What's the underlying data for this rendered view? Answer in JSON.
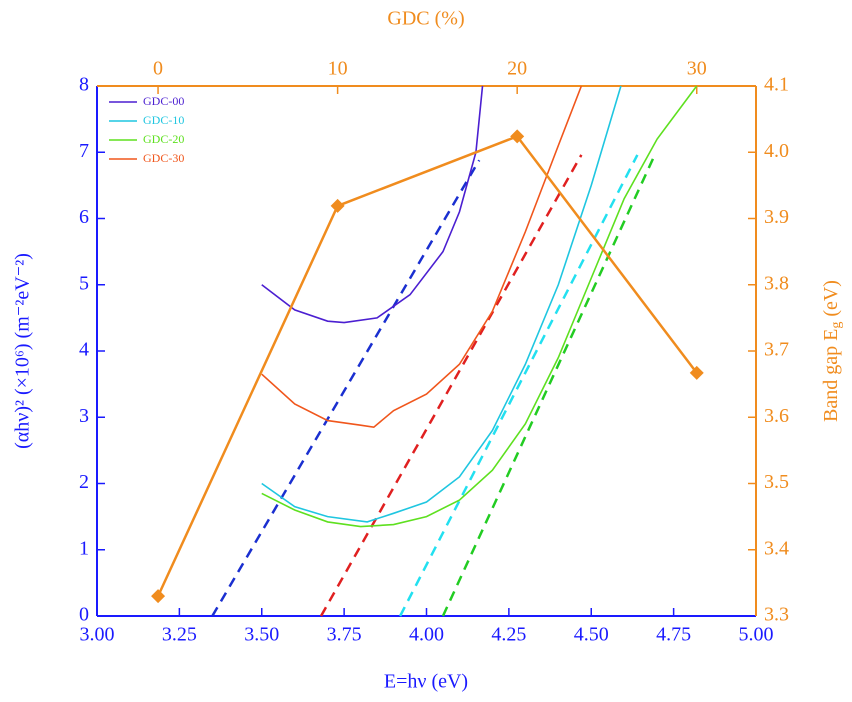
{
  "chart_data": {
    "type": "line",
    "x_label": "E=hν (eV)",
    "y_label": "(αhν)² (×10⁶) (m⁻²eV⁻²)",
    "x2_label": "GDC (%)",
    "y2_label": [
      "Band gap E",
      "g",
      " (eV)"
    ],
    "xlim": [
      3.0,
      5.0
    ],
    "xticks": [
      {
        "value": 3.0,
        "label": "3.00"
      },
      {
        "value": 3.25,
        "label": "3.25"
      },
      {
        "value": 3.5,
        "label": "3.50"
      },
      {
        "value": 3.75,
        "label": "3.75"
      },
      {
        "value": 4.0,
        "label": "4.00"
      },
      {
        "value": 4.25,
        "label": "4.25"
      },
      {
        "value": 4.5,
        "label": "4.50"
      },
      {
        "value": 4.75,
        "label": "4.75"
      },
      {
        "value": 5.0,
        "label": "5.00"
      }
    ],
    "ylim": [
      0,
      8
    ],
    "yticks": [
      0,
      1,
      2,
      3,
      4,
      5,
      6,
      7,
      8
    ],
    "x2lim": [
      -3.4,
      33.3
    ],
    "x2ticks": [
      0,
      10,
      20,
      30
    ],
    "y2lim": [
      3.3,
      4.1
    ],
    "y2ticks": [
      3.3,
      3.4,
      3.5,
      3.6,
      3.7,
      3.8,
      3.9,
      {
        "value": 4.0,
        "label": "4.0"
      },
      4.1
    ],
    "legend": "upper left",
    "series": [
      {
        "name": "GDC-00",
        "color": "#4b1fd1",
        "x": [
          3.5,
          3.6,
          3.7,
          3.75,
          3.85,
          3.95,
          4.05,
          4.1,
          4.15,
          4.17
        ],
        "values": [
          5.0,
          4.62,
          4.45,
          4.43,
          4.5,
          4.85,
          5.5,
          6.1,
          7.0,
          8.0
        ]
      },
      {
        "name": "GDC-10",
        "color": "#1fc6e0",
        "x": [
          3.5,
          3.6,
          3.7,
          3.82,
          3.9,
          4.0,
          4.1,
          4.2,
          4.3,
          4.4,
          4.5,
          4.59
        ],
        "values": [
          2.0,
          1.65,
          1.5,
          1.42,
          1.55,
          1.72,
          2.1,
          2.8,
          3.8,
          5.0,
          6.5,
          8.0
        ]
      },
      {
        "name": "GDC-20",
        "color": "#5ee01f",
        "x": [
          3.5,
          3.6,
          3.7,
          3.8,
          3.9,
          4.0,
          4.1,
          4.2,
          4.3,
          4.4,
          4.5,
          4.6,
          4.7,
          4.82
        ],
        "values": [
          1.85,
          1.6,
          1.42,
          1.35,
          1.38,
          1.5,
          1.75,
          2.2,
          2.9,
          3.9,
          5.1,
          6.3,
          7.2,
          8.0
        ]
      },
      {
        "name": "GDC-30",
        "color": "#f0561c",
        "x": [
          3.5,
          3.6,
          3.7,
          3.8,
          3.84,
          3.9,
          4.0,
          4.1,
          4.2,
          4.3,
          4.4,
          4.47
        ],
        "values": [
          3.65,
          3.2,
          2.95,
          2.88,
          2.85,
          3.1,
          3.35,
          3.8,
          4.6,
          5.8,
          7.1,
          8.0
        ]
      }
    ],
    "fits": [
      {
        "color": "#1a2fd0",
        "x": [
          3.35,
          4.16
        ],
        "values": [
          0,
          6.88
        ]
      },
      {
        "color": "#e02020",
        "x": [
          3.68,
          4.47
        ],
        "values": [
          0,
          6.96
        ]
      },
      {
        "color": "#22e0f0",
        "x": [
          3.92,
          4.64
        ],
        "values": [
          0,
          6.96
        ]
      },
      {
        "color": "#22cc22",
        "x": [
          4.05,
          4.69
        ],
        "values": [
          0,
          6.93
        ]
      }
    ],
    "band_gap": {
      "color": "#f08c1e",
      "axis": "y2",
      "x": [
        0,
        10,
        20,
        30
      ],
      "values": [
        3.33,
        3.919,
        4.024,
        3.667
      ]
    }
  }
}
